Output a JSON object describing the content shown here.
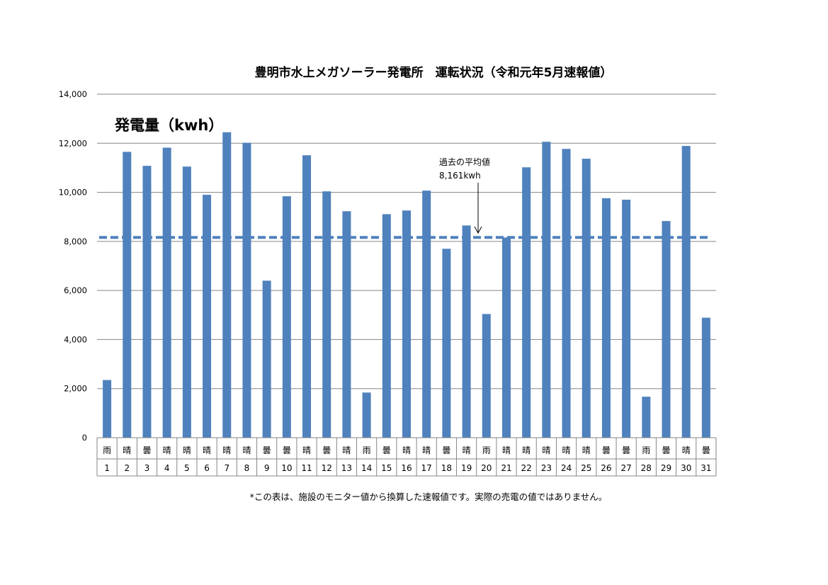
{
  "chart_data": {
    "type": "bar",
    "title": "豊明市水上メガソーラー発電所　運転状況（令和元年5月速報値）",
    "ylabel": "発電量（kwh）",
    "ylim": [
      0,
      14000
    ],
    "yticks": [
      "0",
      "2,000",
      "4,000",
      "6,000",
      "8,000",
      "10,000",
      "12,000",
      "14,000"
    ],
    "ytick_values": [
      0,
      2000,
      4000,
      6000,
      8000,
      10000,
      12000,
      14000
    ],
    "grid": true,
    "categories": [
      "1",
      "2",
      "3",
      "4",
      "5",
      "6",
      "7",
      "8",
      "9",
      "10",
      "11",
      "12",
      "13",
      "14",
      "15",
      "16",
      "17",
      "18",
      "19",
      "20",
      "21",
      "22",
      "23",
      "24",
      "25",
      "26",
      "27",
      "28",
      "29",
      "30",
      "31"
    ],
    "weather": [
      "雨",
      "晴",
      "曇",
      "晴",
      "晴",
      "晴",
      "晴",
      "晴",
      "曇",
      "曇",
      "晴",
      "曇",
      "晴",
      "雨",
      "曇",
      "晴",
      "晴",
      "曇",
      "晴",
      "雨",
      "晴",
      "晴",
      "晴",
      "晴",
      "晴",
      "曇",
      "曇",
      "雨",
      "曇",
      "晴",
      "曇"
    ],
    "values": [
      2350,
      11650,
      11080,
      11820,
      11050,
      9900,
      12450,
      12020,
      6400,
      9840,
      11510,
      10040,
      9230,
      1840,
      9110,
      9260,
      10070,
      7700,
      8650,
      5040,
      8160,
      11020,
      12060,
      11770,
      11370,
      9760,
      9700,
      1670,
      8830,
      11890,
      4890
    ],
    "bar_color": "#4F81BD",
    "reference_line": {
      "value": 8161,
      "label": "過去の平均値",
      "value_label": "8,161kwh",
      "color": "#4F81BD",
      "style": "dashed"
    }
  },
  "footnote": "*この表は、施設のモニター値から換算した速報値です。実際の売電の値ではありません。"
}
